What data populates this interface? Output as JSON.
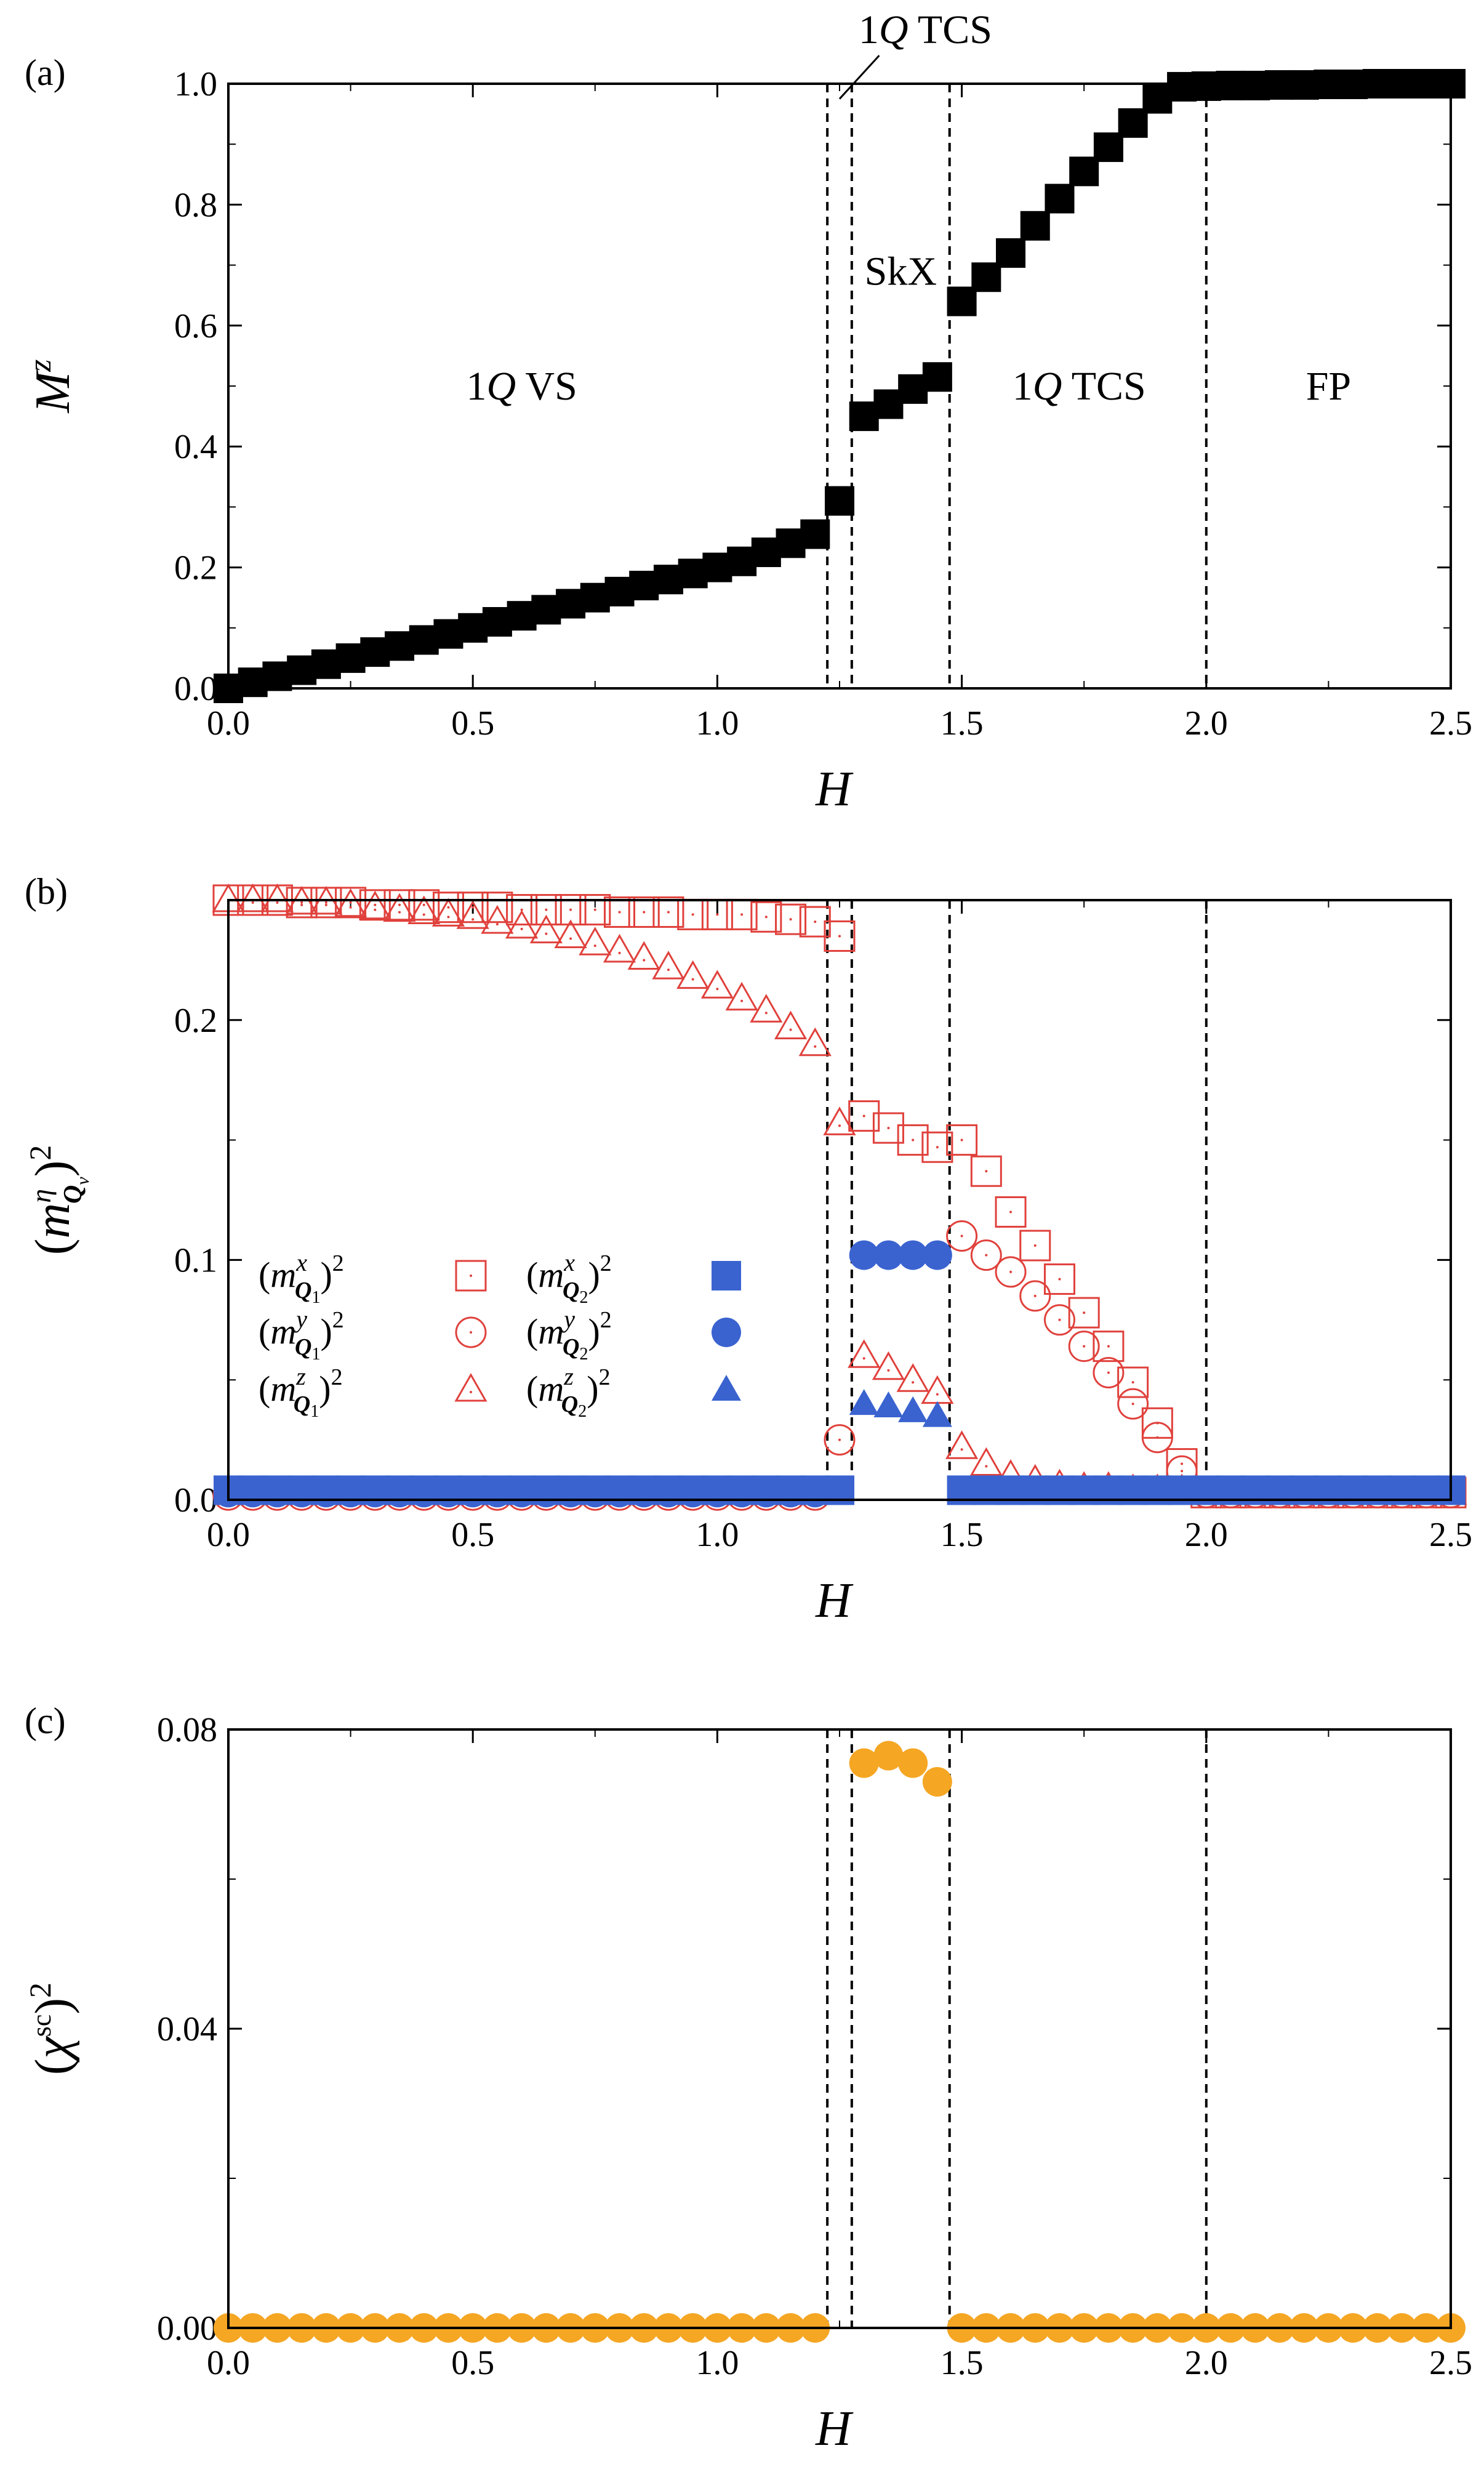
{
  "chart_data": [
    {
      "panel": "(a)",
      "type": "scatter",
      "xlabel": "H",
      "ylabel": "M",
      "ylabel_sup": "z",
      "xlim": [
        0.0,
        2.5
      ],
      "ylim": [
        0.0,
        1.0
      ],
      "xticks": [
        "0.0",
        "0.5",
        "1.0",
        "1.5",
        "2.0",
        "2.5"
      ],
      "yticks": [
        "0.0",
        "0.2",
        "0.4",
        "0.6",
        "0.8",
        "1.0"
      ],
      "phase_boundaries": [
        1.225,
        1.275,
        1.475,
        2.0
      ],
      "regions": [
        {
          "pre": "1",
          "q": "Q",
          "post": " VS",
          "x": 0.6,
          "y": 0.5
        },
        {
          "pre": "",
          "q": "",
          "post": "SkX",
          "x": 1.375,
          "y": 0.69
        },
        {
          "pre": "1",
          "q": "Q",
          "post": " TCS",
          "x": 1.74,
          "y": 0.5
        },
        {
          "pre": "",
          "q": "",
          "post": "FP",
          "x": 2.25,
          "y": 0.5
        }
      ],
      "annotation": {
        "pre": "1",
        "q": "Q",
        "post": " TCS",
        "x": 1.35,
        "y": 1.065,
        "arrow_to": [
          1.25,
          0.975
        ]
      },
      "series": [
        {
          "name": "Mz",
          "marker": "square-filled",
          "color": "#000000",
          "x": [
            0.0,
            0.05,
            0.1,
            0.15,
            0.2,
            0.25,
            0.3,
            0.35,
            0.4,
            0.45,
            0.5,
            0.55,
            0.6,
            0.65,
            0.7,
            0.75,
            0.8,
            0.85,
            0.9,
            0.95,
            1.0,
            1.05,
            1.1,
            1.15,
            1.2,
            1.25,
            1.3,
            1.35,
            1.4,
            1.45,
            1.5,
            1.55,
            1.6,
            1.65,
            1.7,
            1.75,
            1.8,
            1.85,
            1.9,
            1.95,
            2.0,
            2.05,
            2.1,
            2.15,
            2.2,
            2.25,
            2.3,
            2.35,
            2.4,
            2.45,
            2.5
          ],
          "y": [
            0.0,
            0.01,
            0.02,
            0.03,
            0.04,
            0.05,
            0.06,
            0.07,
            0.08,
            0.09,
            0.1,
            0.11,
            0.12,
            0.13,
            0.14,
            0.15,
            0.16,
            0.17,
            0.18,
            0.19,
            0.2,
            0.21,
            0.225,
            0.24,
            0.255,
            0.31,
            0.45,
            0.47,
            0.495,
            0.515,
            0.64,
            0.68,
            0.72,
            0.765,
            0.81,
            0.855,
            0.895,
            0.935,
            0.975,
            0.995,
            0.996,
            0.997,
            0.997,
            0.998,
            0.998,
            0.999,
            0.999,
            1.0,
            1.0,
            1.0,
            1.0
          ]
        }
      ]
    },
    {
      "panel": "(b)",
      "type": "scatter",
      "xlabel": "H",
      "ylabel": "(m^η_Qν)²",
      "xlim": [
        0.0,
        2.5
      ],
      "ylim": [
        0.0,
        0.25
      ],
      "xticks": [
        "0.0",
        "0.5",
        "1.0",
        "1.5",
        "2.0",
        "2.5"
      ],
      "yticks": [
        "0.0",
        "0.1",
        "0.2"
      ],
      "phase_boundaries": [
        1.225,
        1.275,
        1.475,
        2.0
      ],
      "series": [
        {
          "name": "(m^x_Q1)^2",
          "sup": "x",
          "sub": "1",
          "marker": "square-open",
          "color": "#e0413c",
          "x": [
            0.0,
            0.05,
            0.1,
            0.15,
            0.2,
            0.25,
            0.3,
            0.35,
            0.4,
            0.45,
            0.5,
            0.55,
            0.6,
            0.65,
            0.7,
            0.75,
            0.8,
            0.85,
            0.9,
            0.95,
            1.0,
            1.05,
            1.1,
            1.15,
            1.2,
            1.25,
            1.3,
            1.35,
            1.4,
            1.45,
            1.5,
            1.55,
            1.6,
            1.65,
            1.7,
            1.75,
            1.8,
            1.85,
            1.9,
            1.95,
            2.0,
            2.05,
            2.1,
            2.15,
            2.2,
            2.25,
            2.3,
            2.35,
            2.4,
            2.45,
            2.5
          ],
          "y": [
            0.25,
            0.25,
            0.25,
            0.249,
            0.249,
            0.249,
            0.248,
            0.248,
            0.248,
            0.247,
            0.247,
            0.247,
            0.246,
            0.246,
            0.246,
            0.246,
            0.245,
            0.245,
            0.245,
            0.244,
            0.244,
            0.244,
            0.243,
            0.242,
            0.241,
            0.235,
            0.16,
            0.155,
            0.15,
            0.147,
            0.15,
            0.137,
            0.12,
            0.106,
            0.092,
            0.078,
            0.064,
            0.049,
            0.032,
            0.015,
            0.003,
            0.003,
            0.003,
            0.003,
            0.003,
            0.003,
            0.003,
            0.003,
            0.003,
            0.003,
            0.003
          ]
        },
        {
          "name": "(m^y_Q1)^2",
          "sup": "y",
          "sub": "1",
          "marker": "circle-open",
          "color": "#e0413c",
          "x": [
            0.0,
            0.05,
            0.1,
            0.15,
            0.2,
            0.25,
            0.3,
            0.35,
            0.4,
            0.45,
            0.5,
            0.55,
            0.6,
            0.65,
            0.7,
            0.75,
            0.8,
            0.85,
            0.9,
            0.95,
            1.0,
            1.05,
            1.1,
            1.15,
            1.2,
            1.25,
            1.5,
            1.55,
            1.6,
            1.65,
            1.7,
            1.75,
            1.8,
            1.85,
            1.9,
            1.95,
            2.0,
            2.05,
            2.1,
            2.15,
            2.2,
            2.25,
            2.3,
            2.35,
            2.4,
            2.45,
            2.5
          ],
          "y": [
            0.002,
            0.002,
            0.002,
            0.002,
            0.002,
            0.002,
            0.002,
            0.002,
            0.002,
            0.002,
            0.002,
            0.002,
            0.002,
            0.002,
            0.002,
            0.002,
            0.002,
            0.002,
            0.002,
            0.002,
            0.002,
            0.002,
            0.002,
            0.002,
            0.002,
            0.025,
            0.11,
            0.102,
            0.095,
            0.085,
            0.075,
            0.064,
            0.053,
            0.04,
            0.026,
            0.012,
            0.003,
            0.003,
            0.003,
            0.003,
            0.003,
            0.003,
            0.003,
            0.003,
            0.003,
            0.003,
            0.003
          ]
        },
        {
          "name": "(m^z_Q1)^2",
          "sup": "z",
          "sub": "1",
          "marker": "triangle-open",
          "color": "#e0413c",
          "x": [
            0.0,
            0.05,
            0.1,
            0.15,
            0.2,
            0.25,
            0.3,
            0.35,
            0.4,
            0.45,
            0.5,
            0.55,
            0.6,
            0.65,
            0.7,
            0.75,
            0.8,
            0.85,
            0.9,
            0.95,
            1.0,
            1.05,
            1.1,
            1.15,
            1.2,
            1.25,
            1.3,
            1.35,
            1.4,
            1.45,
            1.5,
            1.55,
            1.6,
            1.65,
            1.7,
            1.75,
            1.8,
            1.85,
            1.9,
            1.95,
            2.0,
            2.05,
            2.1,
            2.15,
            2.2,
            2.25,
            2.3,
            2.35,
            2.4,
            2.45,
            2.5
          ],
          "y": [
            0.25,
            0.25,
            0.25,
            0.249,
            0.249,
            0.248,
            0.247,
            0.246,
            0.245,
            0.244,
            0.243,
            0.241,
            0.239,
            0.237,
            0.235,
            0.232,
            0.229,
            0.226,
            0.222,
            0.218,
            0.214,
            0.209,
            0.204,
            0.197,
            0.19,
            0.157,
            0.06,
            0.055,
            0.05,
            0.045,
            0.022,
            0.015,
            0.01,
            0.008,
            0.006,
            0.005,
            0.005,
            0.004,
            0.004,
            0.004,
            0.003,
            0.003,
            0.003,
            0.003,
            0.003,
            0.003,
            0.003,
            0.003,
            0.003,
            0.003,
            0.003
          ]
        },
        {
          "name": "(m^x_Q2)^2",
          "sup": "x",
          "sub": "2",
          "marker": "square-filled",
          "color": "#3a63d0",
          "x": [
            0.0,
            0.05,
            0.1,
            0.15,
            0.2,
            0.25,
            0.3,
            0.35,
            0.4,
            0.45,
            0.5,
            0.55,
            0.6,
            0.65,
            0.7,
            0.75,
            0.8,
            0.85,
            0.9,
            0.95,
            1.0,
            1.05,
            1.1,
            1.15,
            1.2,
            1.25,
            1.5,
            1.55,
            1.6,
            1.65,
            1.7,
            1.75,
            1.8,
            1.85,
            1.9,
            1.95,
            2.0,
            2.05,
            2.1,
            2.15,
            2.2,
            2.25,
            2.3,
            2.35,
            2.4,
            2.45,
            2.5
          ],
          "y": [
            0.004,
            0.004,
            0.004,
            0.004,
            0.004,
            0.004,
            0.004,
            0.004,
            0.004,
            0.004,
            0.004,
            0.004,
            0.004,
            0.004,
            0.004,
            0.004,
            0.004,
            0.004,
            0.004,
            0.004,
            0.004,
            0.004,
            0.004,
            0.004,
            0.004,
            0.004,
            0.004,
            0.004,
            0.004,
            0.004,
            0.004,
            0.004,
            0.004,
            0.004,
            0.004,
            0.004,
            0.004,
            0.004,
            0.004,
            0.004,
            0.004,
            0.004,
            0.004,
            0.004,
            0.004,
            0.004,
            0.004
          ]
        },
        {
          "name": "(m^y_Q2)^2",
          "sup": "y",
          "sub": "2",
          "marker": "circle-filled",
          "color": "#3a63d0",
          "x": [
            0.0,
            0.05,
            0.1,
            0.15,
            0.2,
            0.25,
            0.3,
            0.35,
            0.4,
            0.45,
            0.5,
            0.55,
            0.6,
            0.65,
            0.7,
            0.75,
            0.8,
            0.85,
            0.9,
            0.95,
            1.0,
            1.05,
            1.1,
            1.15,
            1.2,
            1.3,
            1.35,
            1.4,
            1.45
          ],
          "y": [
            0.003,
            0.003,
            0.003,
            0.003,
            0.003,
            0.003,
            0.003,
            0.003,
            0.003,
            0.003,
            0.003,
            0.003,
            0.003,
            0.003,
            0.003,
            0.003,
            0.003,
            0.003,
            0.003,
            0.003,
            0.003,
            0.003,
            0.003,
            0.003,
            0.003,
            0.102,
            0.102,
            0.102,
            0.102
          ]
        },
        {
          "name": "(m^z_Q2)^2",
          "sup": "z",
          "sub": "2",
          "marker": "triangle-filled",
          "color": "#3a63d0",
          "x": [
            1.3,
            1.35,
            1.4,
            1.45,
            1.5,
            1.55,
            1.6,
            1.65,
            1.7,
            1.75,
            1.8,
            1.85,
            1.9,
            1.95
          ],
          "y": [
            0.04,
            0.039,
            0.037,
            0.035,
            0.004,
            0.004,
            0.004,
            0.004,
            0.004,
            0.004,
            0.004,
            0.004,
            0.004,
            0.004
          ]
        }
      ],
      "legend_order": [
        0,
        3,
        1,
        4,
        2,
        5
      ]
    },
    {
      "panel": "(c)",
      "type": "scatter",
      "xlabel": "H",
      "ylabel": "(χ^sc)²",
      "xlim": [
        0.0,
        2.5
      ],
      "ylim": [
        0.0,
        0.08
      ],
      "xticks": [
        "0.0",
        "0.5",
        "1.0",
        "1.5",
        "2.0",
        "2.5"
      ],
      "yticks": [
        "0.00",
        "0.04",
        "0.08"
      ],
      "minor_yticks": [
        0.02,
        0.06
      ],
      "phase_boundaries": [
        1.225,
        1.275,
        1.475,
        2.0
      ],
      "series": [
        {
          "name": "(χsc)^2",
          "marker": "circle-filled",
          "color": "#f5a623",
          "x": [
            0.0,
            0.05,
            0.1,
            0.15,
            0.2,
            0.25,
            0.3,
            0.35,
            0.4,
            0.45,
            0.5,
            0.55,
            0.6,
            0.65,
            0.7,
            0.75,
            0.8,
            0.85,
            0.9,
            0.95,
            1.0,
            1.05,
            1.1,
            1.15,
            1.2,
            1.3,
            1.35,
            1.4,
            1.45,
            1.5,
            1.55,
            1.6,
            1.65,
            1.7,
            1.75,
            1.8,
            1.85,
            1.9,
            1.95,
            2.0,
            2.05,
            2.1,
            2.15,
            2.2,
            2.25,
            2.3,
            2.35,
            2.4,
            2.45,
            2.5
          ],
          "y": [
            0,
            0,
            0,
            0,
            0,
            0,
            0,
            0,
            0,
            0,
            0,
            0,
            0,
            0,
            0,
            0,
            0,
            0,
            0,
            0,
            0,
            0,
            0,
            0,
            0,
            0.0755,
            0.0765,
            0.0755,
            0.073,
            0,
            0,
            0,
            0,
            0,
            0,
            0,
            0,
            0,
            0,
            0,
            0,
            0,
            0,
            0,
            0,
            0,
            0,
            0,
            0,
            0
          ]
        }
      ]
    }
  ]
}
